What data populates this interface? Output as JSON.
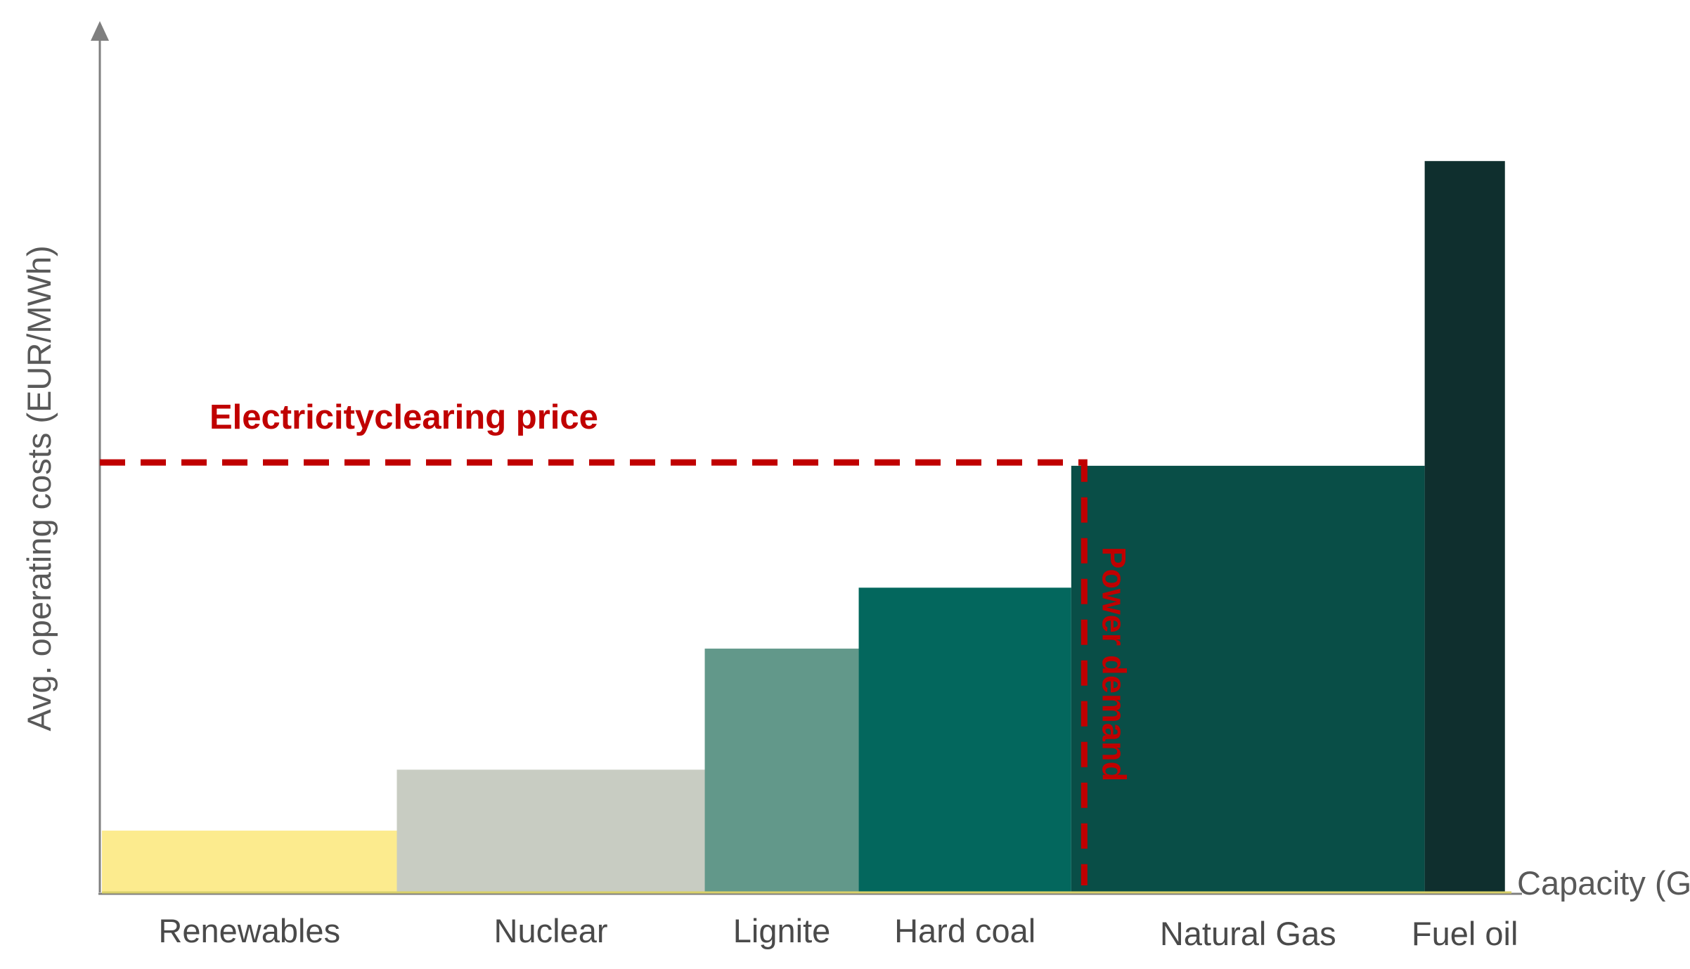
{
  "chart_data": {
    "type": "bar",
    "subtype": "merit-order (variable-width bars)",
    "title": "",
    "xlabel": "Capacity (GW",
    "ylabel": "Avg. operating costs (EUR/MWh)",
    "categories": [
      "Renewables",
      "Nuclear",
      "Lignite",
      "Hard coal",
      "Natural Gas",
      "Fuel oil"
    ],
    "widths": [
      13.6,
      14.2,
      7.1,
      9.8,
      16.3,
      3.7
    ],
    "values": [
      7.4,
      14.7,
      29.2,
      36.5,
      51.1,
      87.6
    ],
    "xlim": [
      0,
      65
    ],
    "ylim": [
      0,
      101
    ],
    "colors": [
      "#FCEB8E",
      "#C8CCC2",
      "#62988A",
      "#03675D",
      "#094E47",
      "#0F2F2E"
    ],
    "grid": false,
    "legend": "none",
    "clearing_price": {
      "label": "Electricityclearing price",
      "y": 51.5,
      "color": "#C00000"
    },
    "power_demand": {
      "label": "Power demand",
      "x": 45.3,
      "color": "#C00000"
    }
  }
}
